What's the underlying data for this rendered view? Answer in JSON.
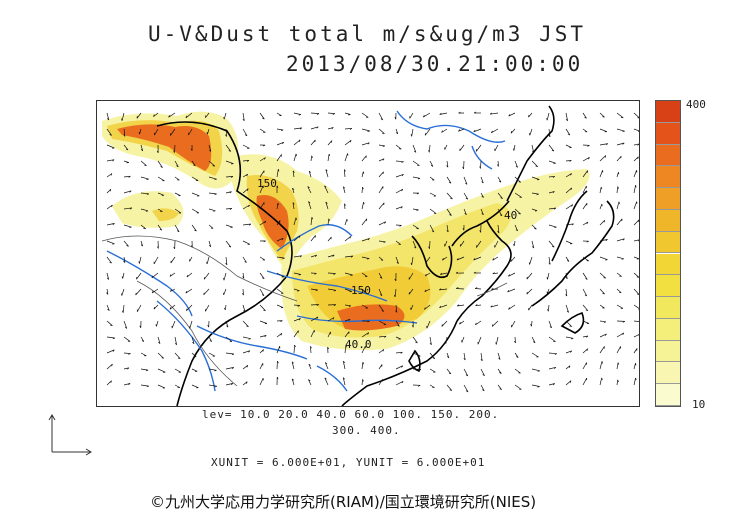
{
  "header": {
    "title_line1": "U-V&Dust total m/s&ug/m3 JST",
    "title_line2": "2013/08/30.21:00:00"
  },
  "colorbar": {
    "max_label": "400",
    "min_label": "10",
    "colors": [
      "#fbfbd0",
      "#f8f6b0",
      "#f6f296",
      "#f4ee7a",
      "#f2e85e",
      "#f1e040",
      "#f1d636",
      "#f0c72e",
      "#f0b62a",
      "#ef9f26",
      "#ee8622",
      "#ea6c1e",
      "#e4531a",
      "#d84016"
    ]
  },
  "legend": {
    "levels_line1": "lev= 10.0 20.0 40.0 60.0 100. 150. 200.",
    "levels_line2": "300. 400.",
    "units_line": "XUNIT = 6.000E+01, YUNIT = 6.000E+01"
  },
  "map": {
    "contour_labels": {
      "a": "150",
      "b": "40",
      "c": "150",
      "d": "40.0"
    }
  },
  "footer": {
    "credit": "©九州大学応用力学研究所(RIAM)/国立環境研究所(NIES)"
  }
}
